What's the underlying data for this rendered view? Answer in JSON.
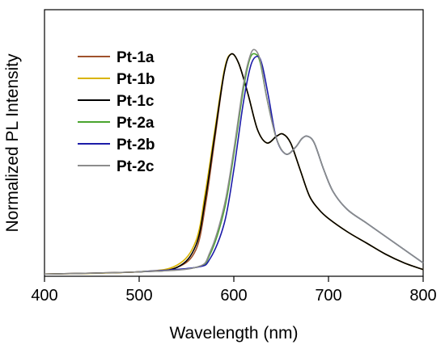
{
  "chart_data": {
    "type": "line",
    "title": "",
    "xlabel": "Wavelength (nm)",
    "ylabel": "Normalized PL Intensity",
    "xlim": [
      400,
      800
    ],
    "ylim": [
      0,
      1.2
    ],
    "xticks": [
      400,
      500,
      600,
      700,
      800
    ],
    "yticks_labeled": false,
    "grid": false,
    "legend_position": "top-left",
    "series": [
      {
        "name": "Pt-1a",
        "color": "#a0522d",
        "x": [
          400,
          500,
          540,
          560,
          570,
          580,
          590,
          597,
          605,
          615,
          625,
          635,
          645,
          652,
          660,
          670,
          680,
          690,
          700,
          720,
          740,
          760,
          780,
          800
        ],
        "y": [
          0.01,
          0.02,
          0.04,
          0.12,
          0.32,
          0.62,
          0.92,
          1.0,
          0.96,
          0.82,
          0.66,
          0.6,
          0.63,
          0.64,
          0.6,
          0.48,
          0.36,
          0.3,
          0.26,
          0.2,
          0.15,
          0.1,
          0.06,
          0.03
        ]
      },
      {
        "name": "Pt-1b",
        "color": "#d9b400",
        "x": [
          400,
          500,
          540,
          560,
          570,
          580,
          590,
          597,
          605,
          615,
          625,
          635,
          645,
          652,
          660,
          670,
          680,
          690,
          700,
          720,
          740,
          760,
          780,
          800
        ],
        "y": [
          0.01,
          0.02,
          0.05,
          0.16,
          0.38,
          0.66,
          0.93,
          1.0,
          0.96,
          0.82,
          0.66,
          0.6,
          0.63,
          0.64,
          0.6,
          0.48,
          0.36,
          0.3,
          0.26,
          0.2,
          0.15,
          0.1,
          0.06,
          0.03
        ]
      },
      {
        "name": "Pt-1c",
        "color": "#000000",
        "x": [
          400,
          500,
          540,
          560,
          570,
          580,
          590,
          597,
          605,
          615,
          625,
          635,
          645,
          652,
          660,
          670,
          680,
          690,
          700,
          720,
          740,
          760,
          780,
          800
        ],
        "y": [
          0.01,
          0.02,
          0.04,
          0.14,
          0.35,
          0.64,
          0.92,
          1.0,
          0.96,
          0.82,
          0.66,
          0.6,
          0.63,
          0.64,
          0.6,
          0.48,
          0.36,
          0.3,
          0.26,
          0.2,
          0.15,
          0.1,
          0.06,
          0.03
        ]
      },
      {
        "name": "Pt-2a",
        "color": "#4aa52e",
        "x": [
          500,
          560,
          575,
          590,
          600,
          610,
          617,
          623,
          628,
          635,
          645,
          655,
          665,
          672,
          678,
          685,
          695,
          705,
          720,
          740,
          760,
          780,
          800
        ],
        "y": [
          0.02,
          0.04,
          0.1,
          0.3,
          0.55,
          0.84,
          0.98,
          1.0,
          0.96,
          0.8,
          0.62,
          0.55,
          0.58,
          0.62,
          0.63,
          0.6,
          0.48,
          0.38,
          0.3,
          0.24,
          0.18,
          0.12,
          0.06
        ]
      },
      {
        "name": "Pt-2b",
        "color": "#1c1ca8",
        "x": [
          500,
          560,
          575,
          590,
          600,
          610,
          618,
          625,
          630,
          637,
          645,
          655,
          665,
          672,
          678,
          685,
          695,
          705,
          720,
          740,
          760,
          780,
          800
        ],
        "y": [
          0.02,
          0.04,
          0.08,
          0.24,
          0.48,
          0.78,
          0.95,
          0.99,
          0.95,
          0.8,
          0.62,
          0.55,
          0.58,
          0.62,
          0.63,
          0.6,
          0.48,
          0.38,
          0.3,
          0.24,
          0.18,
          0.12,
          0.06
        ]
      },
      {
        "name": "Pt-2c",
        "color": "#8c8c8c",
        "x": [
          400,
          500,
          560,
          575,
          590,
          600,
          610,
          617,
          622,
          628,
          635,
          645,
          655,
          665,
          672,
          678,
          685,
          695,
          705,
          720,
          740,
          760,
          780,
          800
        ],
        "y": [
          0.01,
          0.02,
          0.04,
          0.11,
          0.32,
          0.57,
          0.86,
          0.99,
          1.02,
          0.97,
          0.8,
          0.62,
          0.55,
          0.58,
          0.62,
          0.63,
          0.6,
          0.48,
          0.38,
          0.3,
          0.24,
          0.18,
          0.12,
          0.06
        ]
      }
    ]
  }
}
